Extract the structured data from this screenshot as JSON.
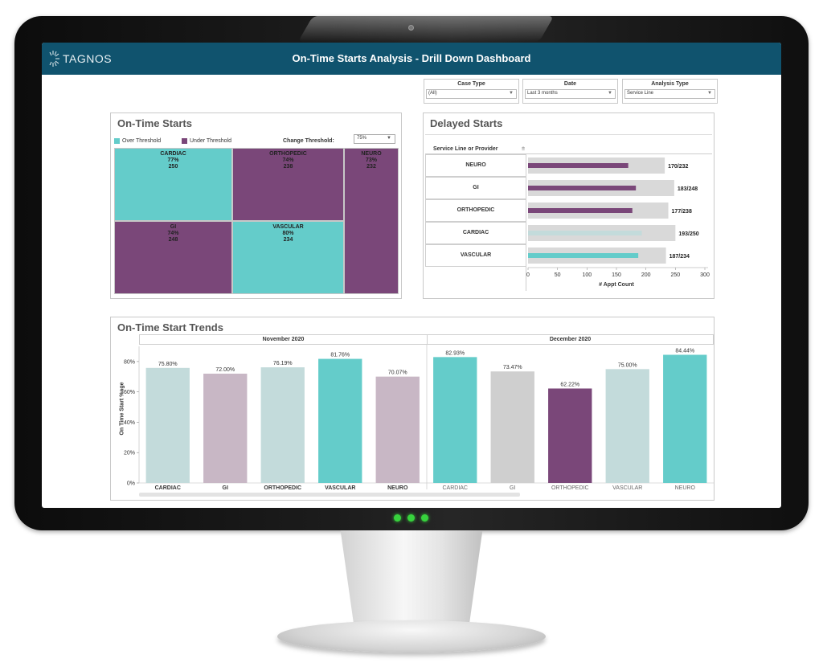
{
  "header": {
    "logo_text": "TAGNOS",
    "title": "On-Time Starts Analysis - Drill Down Dashboard",
    "brand_color": "#10536e"
  },
  "filters": [
    {
      "label": "Case Type",
      "value": "(All)"
    },
    {
      "label": "Date",
      "value": "Last 3 months"
    },
    {
      "label": "Analysis Type",
      "value": "Service Line"
    }
  ],
  "colors": {
    "over": "#64ccca",
    "under": "#7a4779",
    "over_light": "#c3dbdb",
    "under_light": "#c8b7c5",
    "grey": "#d9d9d9",
    "ortho_light": "#cfcfcf"
  },
  "chart_data": [
    {
      "type": "heatmap",
      "title": "On-Time Starts",
      "legend": [
        {
          "label": "Over Threshold",
          "color": "#64ccca"
        },
        {
          "label": "Under Threshold",
          "color": "#7a4779"
        }
      ],
      "threshold_label": "Change Threshold:",
      "threshold_value": "75%",
      "tiles": [
        {
          "name": "CARDIAC",
          "pct": "77%",
          "count": "250",
          "status": "over"
        },
        {
          "name": "ORTHOPEDIC",
          "pct": "74%",
          "count": "238",
          "status": "under"
        },
        {
          "name": "NEURO",
          "pct": "73%",
          "count": "232",
          "status": "under"
        },
        {
          "name": "GI",
          "pct": "74%",
          "count": "248",
          "status": "under"
        },
        {
          "name": "VASCULAR",
          "pct": "80%",
          "count": "234",
          "status": "over"
        }
      ]
    },
    {
      "type": "bar",
      "title": "Delayed Starts",
      "row_header": "Service Line or Provider",
      "xlabel": "# Appt Count",
      "xlim": [
        0,
        300
      ],
      "xticks": [
        "0",
        "50",
        "100",
        "150",
        "200",
        "250",
        "300"
      ],
      "categories": [
        "NEURO",
        "GI",
        "ORTHOPEDIC",
        "CARDIAC",
        "VASCULAR"
      ],
      "series": [
        {
          "name": "",
          "values": [
            232,
            248,
            238,
            250,
            234
          ]
        },
        {
          "name": "",
          "values": [
            170,
            183,
            177,
            193,
            187
          ]
        }
      ],
      "labels": [
        "170/232",
        "183/248",
        "177/238",
        "193/250",
        "187/234"
      ]
    },
    {
      "type": "bar",
      "title": "On-Time Start Trends",
      "ylabel": "On Time Start %age",
      "ylim": [
        0,
        90
      ],
      "yticks": [
        "0%",
        "20%",
        "40%",
        "60%",
        "80%"
      ],
      "groups": [
        {
          "name": "November 2020",
          "categories": [
            "CARDIAC",
            "GI",
            "ORTHOPEDIC",
            "VASCULAR",
            "NEURO"
          ],
          "values": [
            75.8,
            72.0,
            76.19,
            81.76,
            70.07
          ],
          "labels": [
            "75.80%",
            "72.00%",
            "76.19%",
            "81.76%",
            "70.07%"
          ]
        },
        {
          "name": "December 2020",
          "categories": [
            "CARDIAC",
            "GI",
            "ORTHOPEDIC",
            "VASCULAR",
            "NEURO"
          ],
          "values": [
            82.93,
            73.47,
            62.22,
            75.0,
            84.44
          ],
          "labels": [
            "82.93%",
            "73.47%",
            "62.22%",
            "75.00%",
            "84.44%"
          ]
        }
      ]
    }
  ]
}
